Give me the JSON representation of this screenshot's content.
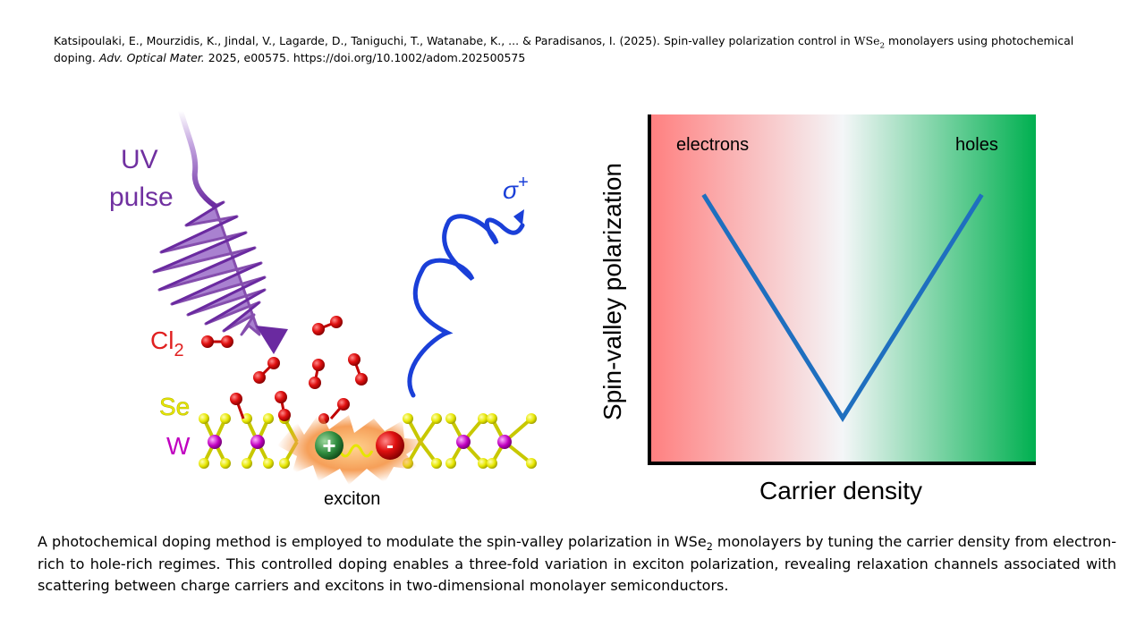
{
  "citation": {
    "authors_year": "Katsipoulaki, E., Mourzidis, K., Jindal, V., Lagarde, D., Taniguchi, T., Watanabe, K., ... & Paradisanos, I. (2025).",
    "title_pre": "Spin-valley polarization control in",
    "material": "WSe",
    "material_sub": "2",
    "title_post": "monolayers using photochemical doping.",
    "journal": "Adv. Optical Mater.",
    "details": "2025, e00575.",
    "doi": "https://doi.org/10.1002/adom.202500575"
  },
  "illustration": {
    "uv_line1": "UV",
    "uv_line2": "pulse",
    "cl": "Cl",
    "cl_sub": "2",
    "se": "Se",
    "w": "W",
    "exciton": "exciton",
    "plus": "+",
    "minus": "-",
    "sigma": "σ",
    "sigma_sup": "+",
    "colors": {
      "uv": "#7030a0",
      "cl": "#e02020",
      "sigma": "#1a3fd8",
      "se": "#e6e600",
      "w": "#c000c0"
    }
  },
  "chart_data": {
    "type": "line",
    "xlabel": "Carrier density",
    "ylabel": "Spin-valley polarization",
    "annotations": [
      "electrons",
      "holes"
    ],
    "x": [
      0.14,
      0.5,
      0.86
    ],
    "y": [
      0.77,
      0.13,
      0.77
    ],
    "xlim": [
      0,
      1
    ],
    "ylim": [
      0,
      1
    ],
    "line_color": "#1f6fbf",
    "background_colors": [
      "#ff7f7f",
      "#f4f6f8",
      "#00b050"
    ],
    "grid": false
  },
  "caption": {
    "part1": "A photochemical doping method is employed to modulate the spin-valley polarization in",
    "material": "WSe",
    "material_sub": "2",
    "part2": "monolayers by tuning the carrier density from electron-rich to hole-rich regimes. This controlled doping enables a three-fold variation in exciton polarization, revealing relaxation channels associated with scattering between charge carriers and excitons in two-dimensional monolayer semiconductors."
  }
}
